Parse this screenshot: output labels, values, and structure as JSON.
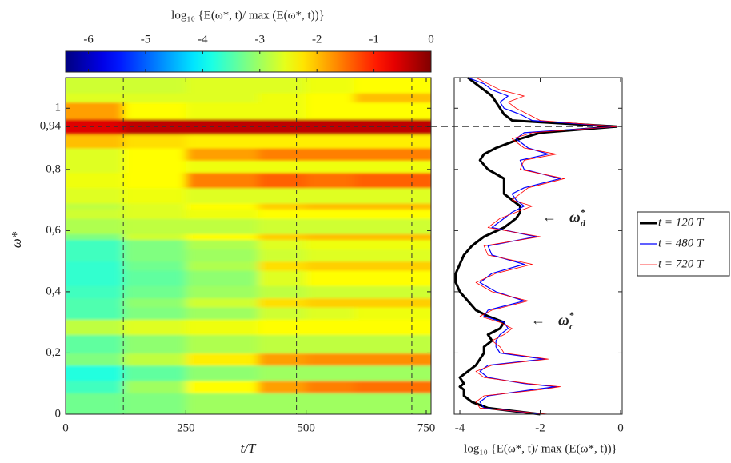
{
  "chart_data": [
    {
      "type": "heatmap",
      "colorbar_title": "log₁₀ {E(ω*, t)/ max (E(ω*, t))}",
      "colormap": "jet",
      "clim": [
        -6.4,
        0
      ],
      "cticks": [
        -6,
        -5,
        -4,
        -3,
        -2,
        -1,
        0
      ],
      "xlabel": "t/T",
      "ylabel": "ω*",
      "xlim": [
        0,
        760
      ],
      "ylim": [
        0,
        1.1
      ],
      "xticks": [
        0,
        250,
        500,
        750
      ],
      "yticks": [
        0,
        {
          "value": 0.2,
          "label": "0,2"
        },
        {
          "value": 0.4,
          "label": "0,4"
        },
        {
          "value": 0.6,
          "label": "0,6"
        },
        {
          "value": 0.8,
          "label": "0,8"
        },
        {
          "value": 0.94,
          "label": "0,94"
        },
        1
      ],
      "x_edges": [
        0,
        120,
        250,
        400,
        500,
        600,
        760
      ],
      "y_edges": [
        0,
        0.07,
        0.11,
        0.16,
        0.2,
        0.26,
        0.31,
        0.35,
        0.38,
        0.42,
        0.47,
        0.5,
        0.54,
        0.57,
        0.59,
        0.64,
        0.67,
        0.69,
        0.74,
        0.79,
        0.83,
        0.87,
        0.915,
        0.965,
        1.02,
        1.05,
        1.1
      ],
      "z": [
        [
          -3.3,
          -3.2,
          -3.0,
          -3.0,
          -3.0,
          -3.0
        ],
        [
          -3.6,
          -3.0,
          -2.4,
          -1.8,
          -1.6,
          -1.5
        ],
        [
          -3.8,
          -3.4,
          -3.1,
          -3.0,
          -3.0,
          -3.0
        ],
        [
          -3.2,
          -2.8,
          -2.3,
          -1.8,
          -1.7,
          -1.7
        ],
        [
          -3.4,
          -3.1,
          -2.9,
          -2.8,
          -2.8,
          -2.8
        ],
        [
          -2.8,
          -2.6,
          -2.5,
          -2.4,
          -2.4,
          -2.4
        ],
        [
          -3.5,
          -3.2,
          -3.0,
          -2.7,
          -2.6,
          -2.5
        ],
        [
          -3.5,
          -3.1,
          -2.7,
          -2.2,
          -2.1,
          -2.1
        ],
        [
          -3.6,
          -3.3,
          -3.0,
          -2.8,
          -2.7,
          -2.7
        ],
        [
          -3.7,
          -3.4,
          -3.1,
          -2.6,
          -2.4,
          -2.4
        ],
        [
          -3.7,
          -3.3,
          -2.9,
          -2.2,
          -2.1,
          -2.1
        ],
        [
          -3.6,
          -3.2,
          -3.0,
          -2.7,
          -2.6,
          -2.6
        ],
        [
          -3.6,
          -3.2,
          -2.9,
          -2.6,
          -2.5,
          -2.5
        ],
        [
          -3.2,
          -2.7,
          -2.4,
          -2.1,
          -2.0,
          -2.0
        ],
        [
          -2.9,
          -2.8,
          -2.8,
          -2.7,
          -2.7,
          -2.7
        ],
        [
          -2.7,
          -2.6,
          -2.5,
          -2.4,
          -2.4,
          -2.4
        ],
        [
          -2.8,
          -2.6,
          -2.4,
          -2.1,
          -2.0,
          -2.0
        ],
        [
          -2.6,
          -2.5,
          -2.6,
          -2.6,
          -2.6,
          -2.6
        ],
        [
          -2.5,
          -2.4,
          -1.6,
          -1.4,
          -1.5,
          -1.4
        ],
        [
          -2.6,
          -2.4,
          -2.5,
          -2.5,
          -2.5,
          -2.5
        ],
        [
          -2.6,
          -2.4,
          -1.8,
          -1.6,
          -1.6,
          -1.6
        ],
        [
          -2.0,
          -2.2,
          -2.3,
          -2.3,
          -2.3,
          -2.3
        ],
        [
          -0.6,
          -0.4,
          -0.4,
          -0.4,
          -0.4,
          -0.4
        ],
        [
          -1.8,
          -2.4,
          -2.5,
          -2.5,
          -2.4,
          -2.4
        ],
        [
          -2.6,
          -2.6,
          -2.6,
          -2.5,
          -2.4,
          -2.0
        ],
        [
          -2.7,
          -2.7,
          -2.6,
          -2.6,
          -2.5,
          -2.4
        ]
      ],
      "vlines": [
        120,
        480,
        720
      ],
      "hline": 0.94
    },
    {
      "type": "line",
      "xlabel": "log₁₀ {E(ω*, t)/ max (E(ω*, t))}",
      "xlim": [
        -4.14,
        0.04
      ],
      "ylim": [
        0,
        1.1
      ],
      "xticks": [
        -4,
        -2,
        0
      ],
      "yticks": [
        0,
        0.2,
        0.4,
        0.6,
        0.8,
        1
      ],
      "y": [
        0,
        0.02,
        0.04,
        0.06,
        0.08,
        0.09,
        0.1,
        0.12,
        0.14,
        0.16,
        0.18,
        0.2,
        0.22,
        0.24,
        0.26,
        0.28,
        0.3,
        0.32,
        0.34,
        0.37,
        0.4,
        0.43,
        0.46,
        0.49,
        0.52,
        0.55,
        0.58,
        0.61,
        0.64,
        0.66,
        0.68,
        0.7,
        0.72,
        0.74,
        0.77,
        0.8,
        0.83,
        0.85,
        0.87,
        0.9,
        0.92,
        0.94,
        0.96,
        0.98,
        1.0,
        1.02,
        1.04,
        1.06,
        1.08,
        1.1
      ],
      "series": [
        {
          "name": "t = 120 T",
          "color": "#000000",
          "width": 3,
          "values": [
            -2.0,
            -3.3,
            -3.7,
            -3.9,
            -3.9,
            -4.0,
            -3.9,
            -4.0,
            -3.8,
            -3.6,
            -3.5,
            -3.4,
            -3.4,
            -3.2,
            -3.3,
            -3.0,
            -2.9,
            -3.3,
            -3.6,
            -3.8,
            -4.0,
            -4.1,
            -4.1,
            -4.0,
            -3.9,
            -3.7,
            -3.4,
            -2.9,
            -2.6,
            -2.5,
            -2.5,
            -2.7,
            -2.9,
            -2.9,
            -2.9,
            -3.3,
            -3.5,
            -3.4,
            -3.1,
            -2.5,
            -2.0,
            -0.1,
            -2.7,
            -2.9,
            -3.0,
            -3.1,
            -3.2,
            -3.4,
            -3.6,
            -3.8
          ]
        },
        {
          "name": "t = 480 T",
          "color": "#0000ff",
          "width": 1.2,
          "values": [
            -1.9,
            -3.4,
            -3.5,
            -3.3,
            -2.2,
            -1.6,
            -2.4,
            -3.3,
            -3.5,
            -3.3,
            -1.9,
            -3.0,
            -3.1,
            -3.1,
            -3.0,
            -2.8,
            -2.9,
            -3.4,
            -3.3,
            -2.4,
            -3.1,
            -3.5,
            -3.2,
            -2.4,
            -3.2,
            -3.3,
            -2.1,
            -3.2,
            -2.9,
            -2.7,
            -2.4,
            -2.6,
            -2.7,
            -2.4,
            -1.5,
            -2.4,
            -2.5,
            -1.8,
            -2.3,
            -2.6,
            -2.4,
            -0.1,
            -2.2,
            -2.5,
            -2.9,
            -3.0,
            -2.8,
            -3.2,
            -3.4,
            -3.8
          ]
        },
        {
          "name": "t = 720 T",
          "color": "#ff0000",
          "width": 0.8,
          "values": [
            -1.8,
            -3.5,
            -3.6,
            -3.4,
            -2.0,
            -1.5,
            -2.3,
            -3.4,
            -3.6,
            -3.2,
            -1.8,
            -2.9,
            -3.0,
            -3.2,
            -2.9,
            -2.7,
            -3.0,
            -3.5,
            -3.2,
            -2.3,
            -3.2,
            -3.6,
            -3.1,
            -2.2,
            -3.3,
            -3.4,
            -2.0,
            -3.3,
            -3.0,
            -2.6,
            -2.2,
            -2.7,
            -2.5,
            -2.3,
            -1.4,
            -2.5,
            -2.4,
            -1.6,
            -2.4,
            -2.7,
            -2.2,
            -0.1,
            -2.0,
            -2.3,
            -2.6,
            -2.8,
            -2.4,
            -3.0,
            -3.3,
            -3.6
          ]
        }
      ],
      "annotations": [
        {
          "arrow": "←",
          "symbol": "ω",
          "sup": "*",
          "sub": "d"
        },
        {
          "arrow": "←",
          "symbol": "ω",
          "sup": "*",
          "sub": "c"
        }
      ]
    }
  ]
}
